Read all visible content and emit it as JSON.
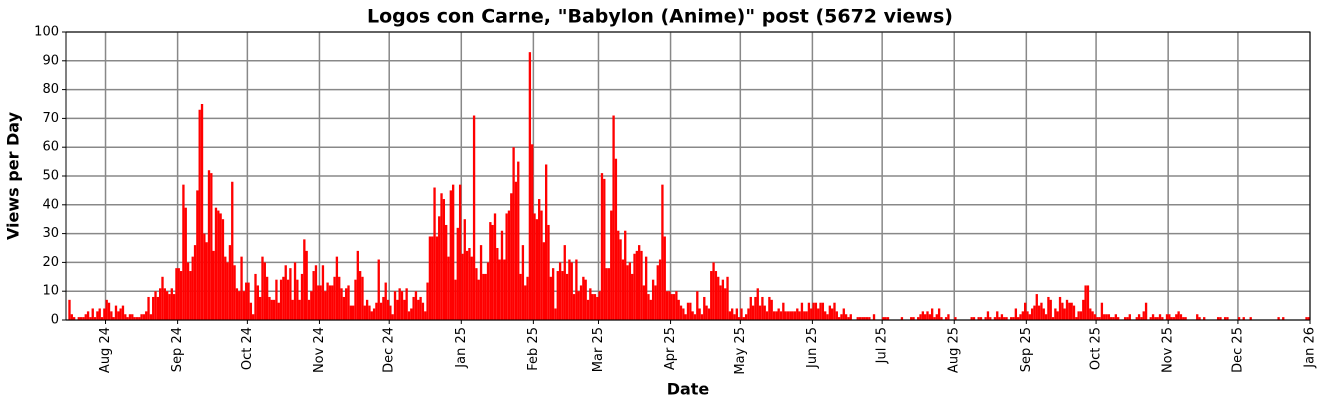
{
  "chart_data": {
    "type": "bar",
    "title": "Logos con Carne, \"Babylon (Anime)\" post (5672 views)",
    "xlabel": "Date",
    "ylabel": "Views per Day",
    "color": "#ff0000",
    "grid": true,
    "xlim": [
      "2024-07-15",
      "2026-01-01"
    ],
    "xticks": [
      {
        "value": "2024-08-01",
        "label": "Aug 24"
      },
      {
        "value": "2024-09-01",
        "label": "Sep 24"
      },
      {
        "value": "2024-10-01",
        "label": "Oct 24"
      },
      {
        "value": "2024-11-01",
        "label": "Nov 24"
      },
      {
        "value": "2024-12-01",
        "label": "Dec 24"
      },
      {
        "value": "2025-01-01",
        "label": "Jan 25"
      },
      {
        "value": "2025-02-01",
        "label": "Feb 25"
      },
      {
        "value": "2025-03-01",
        "label": "Mar 25"
      },
      {
        "value": "2025-04-01",
        "label": "Apr 25"
      },
      {
        "value": "2025-05-01",
        "label": "May 25"
      },
      {
        "value": "2025-06-01",
        "label": "Jun 25"
      },
      {
        "value": "2025-07-01",
        "label": "Jul 25"
      },
      {
        "value": "2025-08-01",
        "label": "Aug 25"
      },
      {
        "value": "2025-09-01",
        "label": "Sep 25"
      },
      {
        "value": "2025-10-01",
        "label": "Oct 25"
      },
      {
        "value": "2025-11-01",
        "label": "Nov 25"
      },
      {
        "value": "2025-12-01",
        "label": "Dec 25"
      },
      {
        "value": "2026-01-01",
        "label": "Jan 26"
      }
    ],
    "ylim": [
      0,
      100
    ],
    "yticks": [
      0,
      10,
      20,
      30,
      40,
      50,
      60,
      70,
      80,
      90,
      100
    ],
    "x": [
      "2024-07-16",
      "2024-07-17",
      "2024-07-18",
      "2024-07-19",
      "2024-07-20",
      "2024-07-21",
      "2024-07-22",
      "2024-07-23",
      "2024-07-24",
      "2024-07-25",
      "2024-07-26",
      "2024-07-27",
      "2024-07-28",
      "2024-07-29",
      "2024-07-30",
      "2024-07-31",
      "2024-08-01",
      "2024-08-02",
      "2024-08-03",
      "2024-08-04",
      "2024-08-05",
      "2024-08-06",
      "2024-08-07",
      "2024-08-08",
      "2024-08-09",
      "2024-08-10",
      "2024-08-11",
      "2024-08-12",
      "2024-08-13",
      "2024-08-14",
      "2024-08-15",
      "2024-08-16",
      "2024-08-17",
      "2024-08-18",
      "2024-08-19",
      "2024-08-20",
      "2024-08-21",
      "2024-08-22",
      "2024-08-23",
      "2024-08-24",
      "2024-08-25",
      "2024-08-26",
      "2024-08-27",
      "2024-08-28",
      "2024-08-29",
      "2024-08-30",
      "2024-08-31",
      "2024-09-01",
      "2024-09-02",
      "2024-09-03",
      "2024-09-04",
      "2024-09-05",
      "2024-09-06",
      "2024-09-07",
      "2024-09-08",
      "2024-09-09",
      "2024-09-10",
      "2024-09-11",
      "2024-09-12",
      "2024-09-13",
      "2024-09-14",
      "2024-09-15",
      "2024-09-16",
      "2024-09-17",
      "2024-09-18",
      "2024-09-19",
      "2024-09-20",
      "2024-09-21",
      "2024-09-22",
      "2024-09-23",
      "2024-09-24",
      "2024-09-25",
      "2024-09-26",
      "2024-09-27",
      "2024-09-28",
      "2024-09-29",
      "2024-09-30",
      "2024-10-01",
      "2024-10-02",
      "2024-10-03",
      "2024-10-04",
      "2024-10-05",
      "2024-10-06",
      "2024-10-07",
      "2024-10-08",
      "2024-10-09",
      "2024-10-10",
      "2024-10-11",
      "2024-10-12",
      "2024-10-13",
      "2024-10-14",
      "2024-10-15",
      "2024-10-16",
      "2024-10-17",
      "2024-10-18",
      "2024-10-19",
      "2024-10-20",
      "2024-10-21",
      "2024-10-22",
      "2024-10-23",
      "2024-10-24",
      "2024-10-25",
      "2024-10-26",
      "2024-10-27",
      "2024-10-28",
      "2024-10-29",
      "2024-10-30",
      "2024-10-31",
      "2024-11-01",
      "2024-11-02",
      "2024-11-03",
      "2024-11-04",
      "2024-11-05",
      "2024-11-06",
      "2024-11-07",
      "2024-11-08",
      "2024-11-09",
      "2024-11-10",
      "2024-11-11",
      "2024-11-12",
      "2024-11-13",
      "2024-11-14",
      "2024-11-15",
      "2024-11-16",
      "2024-11-17",
      "2024-11-18",
      "2024-11-19",
      "2024-11-20",
      "2024-11-21",
      "2024-11-22",
      "2024-11-23",
      "2024-11-24",
      "2024-11-25",
      "2024-11-26",
      "2024-11-27",
      "2024-11-28",
      "2024-11-29",
      "2024-11-30",
      "2024-12-01",
      "2024-12-02",
      "2024-12-03",
      "2024-12-04",
      "2024-12-05",
      "2024-12-06",
      "2024-12-07",
      "2024-12-08",
      "2024-12-09",
      "2024-12-10",
      "2024-12-11",
      "2024-12-12",
      "2024-12-13",
      "2024-12-14",
      "2024-12-15",
      "2024-12-16",
      "2024-12-17",
      "2024-12-18",
      "2024-12-19",
      "2024-12-20",
      "2024-12-21",
      "2024-12-22",
      "2024-12-23",
      "2024-12-24",
      "2024-12-25",
      "2024-12-26",
      "2024-12-27",
      "2024-12-28",
      "2024-12-29",
      "2024-12-30",
      "2024-12-31",
      "2025-01-01",
      "2025-01-02",
      "2025-01-03",
      "2025-01-04",
      "2025-01-05",
      "2025-01-06",
      "2025-01-07",
      "2025-01-08",
      "2025-01-09",
      "2025-01-10",
      "2025-01-11",
      "2025-01-12",
      "2025-01-13",
      "2025-01-14",
      "2025-01-15",
      "2025-01-16",
      "2025-01-17",
      "2025-01-18",
      "2025-01-19",
      "2025-01-20",
      "2025-01-21",
      "2025-01-22",
      "2025-01-23",
      "2025-01-24",
      "2025-01-25",
      "2025-01-26",
      "2025-01-27",
      "2025-01-28",
      "2025-01-29",
      "2025-01-30",
      "2025-01-31",
      "2025-02-01",
      "2025-02-02",
      "2025-02-03",
      "2025-02-04",
      "2025-02-05",
      "2025-02-06",
      "2025-02-07",
      "2025-02-08",
      "2025-02-09",
      "2025-02-10",
      "2025-02-11",
      "2025-02-12",
      "2025-02-13",
      "2025-02-14",
      "2025-02-15",
      "2025-02-16",
      "2025-02-17",
      "2025-02-18",
      "2025-02-19",
      "2025-02-20",
      "2025-02-21",
      "2025-02-22",
      "2025-02-23",
      "2025-02-24",
      "2025-02-25",
      "2025-02-26",
      "2025-02-27",
      "2025-02-28",
      "2025-03-01",
      "2025-03-02",
      "2025-03-03",
      "2025-03-04",
      "2025-03-05",
      "2025-03-06",
      "2025-03-07",
      "2025-03-08",
      "2025-03-09",
      "2025-03-10",
      "2025-03-11",
      "2025-03-12",
      "2025-03-13",
      "2025-03-14",
      "2025-03-15",
      "2025-03-16",
      "2025-03-17",
      "2025-03-18",
      "2025-03-19",
      "2025-03-20",
      "2025-03-21",
      "2025-03-22",
      "2025-03-23",
      "2025-03-24",
      "2025-03-25",
      "2025-03-26",
      "2025-03-27",
      "2025-03-28",
      "2025-03-29",
      "2025-03-30",
      "2025-03-31",
      "2025-04-01",
      "2025-04-02",
      "2025-04-03",
      "2025-04-04",
      "2025-04-05",
      "2025-04-06",
      "2025-04-07",
      "2025-04-08",
      "2025-04-09",
      "2025-04-10",
      "2025-04-11",
      "2025-04-12",
      "2025-04-13",
      "2025-04-14",
      "2025-04-15",
      "2025-04-16",
      "2025-04-17",
      "2025-04-18",
      "2025-04-19",
      "2025-04-20",
      "2025-04-21",
      "2025-04-22",
      "2025-04-23",
      "2025-04-24",
      "2025-04-25",
      "2025-04-26",
      "2025-04-27",
      "2025-04-28",
      "2025-04-29",
      "2025-04-30",
      "2025-05-01",
      "2025-05-02",
      "2025-05-03",
      "2025-05-04",
      "2025-05-05",
      "2025-05-06",
      "2025-05-07",
      "2025-05-08",
      "2025-05-09",
      "2025-05-10",
      "2025-05-11",
      "2025-05-12",
      "2025-05-13",
      "2025-05-14",
      "2025-05-15",
      "2025-05-16",
      "2025-05-17",
      "2025-05-18",
      "2025-05-19",
      "2025-05-20",
      "2025-05-21",
      "2025-05-22",
      "2025-05-23",
      "2025-05-24",
      "2025-05-25",
      "2025-05-26",
      "2025-05-27",
      "2025-05-28",
      "2025-05-29",
      "2025-05-30",
      "2025-05-31",
      "2025-06-01",
      "2025-06-02",
      "2025-06-03",
      "2025-06-04",
      "2025-06-05",
      "2025-06-06",
      "2025-06-07",
      "2025-06-08",
      "2025-06-09",
      "2025-06-10",
      "2025-06-11",
      "2025-06-12",
      "2025-06-13",
      "2025-06-14",
      "2025-06-15",
      "2025-06-16",
      "2025-06-17",
      "2025-06-18",
      "2025-06-19",
      "2025-06-20",
      "2025-06-21",
      "2025-06-22",
      "2025-06-23",
      "2025-06-24",
      "2025-06-25",
      "2025-06-26",
      "2025-06-27",
      "2025-06-28",
      "2025-06-29",
      "2025-06-30",
      "2025-07-01",
      "2025-07-02",
      "2025-07-03",
      "2025-07-04",
      "2025-07-05",
      "2025-07-06",
      "2025-07-07",
      "2025-07-08",
      "2025-07-09",
      "2025-07-10",
      "2025-07-11",
      "2025-07-12",
      "2025-07-13",
      "2025-07-14",
      "2025-07-15",
      "2025-07-16",
      "2025-07-17",
      "2025-07-18",
      "2025-07-19",
      "2025-07-20",
      "2025-07-21",
      "2025-07-22",
      "2025-07-23",
      "2025-07-24",
      "2025-07-25",
      "2025-07-26",
      "2025-07-27",
      "2025-07-28",
      "2025-07-29",
      "2025-07-30",
      "2025-07-31",
      "2025-08-01",
      "2025-08-02",
      "2025-08-03",
      "2025-08-04",
      "2025-08-05",
      "2025-08-06",
      "2025-08-07",
      "2025-08-08",
      "2025-08-09",
      "2025-08-10",
      "2025-08-11",
      "2025-08-12",
      "2025-08-13",
      "2025-08-14",
      "2025-08-15",
      "2025-08-16",
      "2025-08-17",
      "2025-08-18",
      "2025-08-19",
      "2025-08-20",
      "2025-08-21",
      "2025-08-22",
      "2025-08-23",
      "2025-08-24",
      "2025-08-25",
      "2025-08-26",
      "2025-08-27",
      "2025-08-28",
      "2025-08-29",
      "2025-08-30",
      "2025-08-31",
      "2025-09-01",
      "2025-09-02",
      "2025-09-03",
      "2025-09-04",
      "2025-09-05",
      "2025-09-06",
      "2025-09-07",
      "2025-09-08",
      "2025-09-09",
      "2025-09-10",
      "2025-09-11",
      "2025-09-12",
      "2025-09-13",
      "2025-09-14",
      "2025-09-15",
      "2025-09-16",
      "2025-09-17",
      "2025-09-18",
      "2025-09-19",
      "2025-09-20",
      "2025-09-21",
      "2025-09-22",
      "2025-09-23",
      "2025-09-24",
      "2025-09-25",
      "2025-09-26",
      "2025-09-27",
      "2025-09-28",
      "2025-09-29",
      "2025-09-30",
      "2025-10-01",
      "2025-10-02",
      "2025-10-03",
      "2025-10-04",
      "2025-10-05",
      "2025-10-06",
      "2025-10-07",
      "2025-10-08",
      "2025-10-09",
      "2025-10-10",
      "2025-10-11",
      "2025-10-12",
      "2025-10-13",
      "2025-10-14",
      "2025-10-15",
      "2025-10-16",
      "2025-10-17",
      "2025-10-18",
      "2025-10-19",
      "2025-10-20",
      "2025-10-21",
      "2025-10-22",
      "2025-10-23",
      "2025-10-24",
      "2025-10-25",
      "2025-10-26",
      "2025-10-27",
      "2025-10-28",
      "2025-10-29",
      "2025-10-30",
      "2025-10-31",
      "2025-11-01",
      "2025-11-02",
      "2025-11-03",
      "2025-11-04",
      "2025-11-05",
      "2025-11-06",
      "2025-11-07",
      "2025-11-08",
      "2025-11-09",
      "2025-11-10",
      "2025-11-11",
      "2025-11-12",
      "2025-11-13",
      "2025-11-14",
      "2025-11-15",
      "2025-11-16",
      "2025-11-17",
      "2025-11-18",
      "2025-11-19",
      "2025-11-20",
      "2025-11-21",
      "2025-11-22",
      "2025-11-23",
      "2025-11-24",
      "2025-11-25",
      "2025-11-26",
      "2025-11-27",
      "2025-11-28",
      "2025-11-29",
      "2025-11-30",
      "2025-12-01",
      "2025-12-02",
      "2025-12-03",
      "2025-12-04",
      "2025-12-05",
      "2025-12-06",
      "2025-12-07",
      "2025-12-08",
      "2025-12-09",
      "2025-12-10",
      "2025-12-11",
      "2025-12-12",
      "2025-12-13",
      "2025-12-14",
      "2025-12-15",
      "2025-12-16",
      "2025-12-17",
      "2025-12-18",
      "2025-12-19",
      "2025-12-20",
      "2025-12-21",
      "2025-12-22",
      "2025-12-23",
      "2025-12-24",
      "2025-12-25",
      "2025-12-26",
      "2025-12-27",
      "2025-12-28",
      "2025-12-29",
      "2025-12-30",
      "2025-12-31"
    ],
    "values": [
      7,
      2,
      1,
      0,
      1,
      1,
      1,
      2,
      3,
      1,
      4,
      1,
      3,
      4,
      1,
      4,
      7,
      6,
      3,
      1,
      5,
      3,
      4,
      5,
      2,
      1,
      2,
      2,
      1,
      1,
      1,
      2,
      2,
      3,
      8,
      2,
      8,
      10,
      8,
      11,
      15,
      11,
      10,
      9,
      11,
      9,
      18,
      18,
      17,
      47,
      39,
      20,
      17,
      22,
      26,
      45,
      73,
      75,
      30,
      27,
      52,
      51,
      24,
      39,
      38,
      37,
      35,
      22,
      20,
      26,
      48,
      19,
      11,
      10,
      22,
      10,
      13,
      13,
      6,
      2,
      16,
      12,
      8,
      22,
      20,
      15,
      8,
      7,
      7,
      14,
      6,
      14,
      15,
      19,
      14,
      18,
      7,
      20,
      14,
      7,
      16,
      28,
      24,
      7,
      10,
      17,
      19,
      12,
      12,
      19,
      10,
      13,
      12,
      12,
      15,
      22,
      15,
      11,
      8,
      11,
      12,
      5,
      5,
      14,
      24,
      17,
      15,
      5,
      7,
      5,
      3,
      4,
      6,
      21,
      6,
      8,
      13,
      7,
      5,
      2,
      10,
      7,
      11,
      10,
      7,
      11,
      3,
      4,
      8,
      10,
      7,
      8,
      6,
      3,
      13,
      29,
      29,
      46,
      29,
      36,
      44,
      42,
      33,
      22,
      45,
      47,
      14,
      32,
      47,
      23,
      35,
      24,
      25,
      22,
      71,
      18,
      14,
      26,
      16,
      16,
      20,
      34,
      33,
      37,
      25,
      21,
      31,
      21,
      37,
      38,
      44,
      60,
      48,
      55,
      16,
      26,
      12,
      15,
      93,
      61,
      37,
      35,
      42,
      38,
      27,
      54,
      33,
      15,
      18,
      4,
      17,
      20,
      17,
      26,
      16,
      21,
      20,
      9,
      21,
      10,
      12,
      15,
      14,
      7,
      11,
      9,
      9,
      8,
      10,
      51,
      49,
      18,
      18,
      38,
      71,
      56,
      31,
      28,
      21,
      31,
      19,
      20,
      16,
      23,
      24,
      26,
      24,
      12,
      22,
      9,
      7,
      14,
      12,
      19,
      21,
      47,
      29,
      10,
      10,
      9,
      9,
      10,
      7,
      5,
      4,
      2,
      6,
      6,
      3,
      2,
      10,
      4,
      2,
      8,
      5,
      4,
      17,
      20,
      17,
      15,
      12,
      14,
      11,
      15,
      3,
      4,
      2,
      4,
      1,
      4,
      1,
      2,
      4,
      8,
      5,
      8,
      11,
      5,
      8,
      5,
      3,
      8,
      7,
      3,
      3,
      4,
      3,
      6,
      3,
      3,
      3,
      3,
      3,
      4,
      3,
      6,
      3,
      3,
      6,
      4,
      6,
      6,
      4,
      6,
      6,
      3,
      2,
      5,
      4,
      6,
      3,
      1,
      2,
      4,
      2,
      1,
      2,
      0,
      0,
      1,
      1,
      1,
      1,
      1,
      1,
      0,
      2,
      0,
      0,
      0,
      1,
      1,
      1,
      0,
      0,
      0,
      0,
      0,
      1,
      0,
      0,
      0,
      1,
      1,
      0,
      1,
      2,
      3,
      2,
      3,
      2,
      4,
      1,
      2,
      4,
      1,
      0,
      1,
      2,
      0,
      0,
      1,
      0,
      0,
      0,
      0,
      0,
      0,
      1,
      1,
      0,
      1,
      1,
      0,
      1,
      3,
      1,
      0,
      1,
      3,
      1,
      2,
      1,
      1,
      0,
      1,
      1,
      4,
      1,
      2,
      3,
      6,
      3,
      2,
      4,
      5,
      9,
      5,
      6,
      4,
      2,
      8,
      7,
      1,
      4,
      3,
      8,
      6,
      4,
      7,
      6,
      6,
      5,
      1,
      3,
      3,
      7,
      12,
      12,
      4,
      3,
      2,
      1,
      1,
      6,
      2,
      2,
      2,
      1,
      1,
      2,
      1,
      0,
      0,
      1,
      1,
      2,
      0,
      0,
      1,
      2,
      1,
      3,
      6,
      0,
      1,
      2,
      1,
      1,
      2,
      1,
      0,
      2,
      2,
      1,
      1,
      2,
      3,
      2,
      1,
      1,
      0,
      0,
      0,
      0,
      2,
      1,
      0,
      1,
      0,
      0,
      0,
      0,
      0,
      1,
      1,
      0,
      1,
      1,
      0,
      0,
      0,
      0,
      1,
      0,
      1,
      0,
      0,
      1,
      0,
      0,
      0,
      0,
      0,
      0,
      0,
      0,
      0,
      0,
      0,
      1,
      0,
      1,
      0,
      0,
      0,
      0,
      0,
      0,
      0,
      0,
      0,
      1,
      1
    ]
  }
}
